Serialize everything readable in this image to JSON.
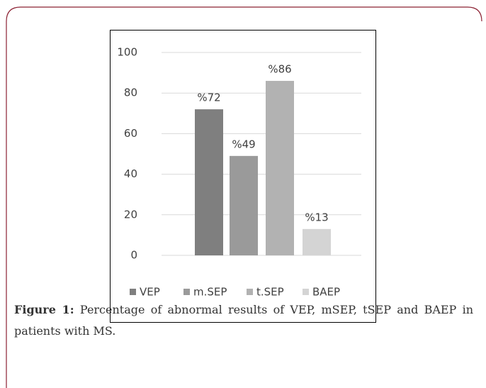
{
  "chart_data": {
    "type": "bar",
    "categories": [
      "VEP",
      "m.SEP",
      "t.SEP",
      "BAEP"
    ],
    "values": [
      72,
      49,
      86,
      13
    ],
    "value_labels": [
      "%72",
      "%49",
      "%86",
      "%13"
    ],
    "colors": [
      "#7f7f7f",
      "#9a9a9a",
      "#b2b2b2",
      "#d4d4d4"
    ],
    "ylim": [
      0,
      100
    ],
    "yticks": [
      0,
      20,
      40,
      60,
      80,
      100
    ],
    "grid": true,
    "legend": "bottom"
  },
  "caption": {
    "label": "Figure 1:",
    "text": "Percentage of abnormal results of VEP, mSEP, tSEP and BAEP in patients with MS."
  }
}
